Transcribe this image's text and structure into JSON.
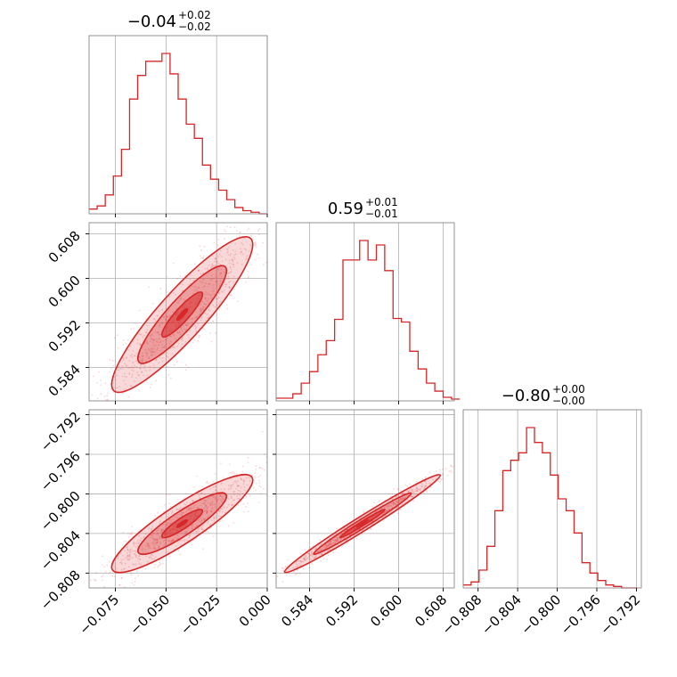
{
  "chart_data": {
    "type": "corner",
    "color": "#d62728",
    "grid": true,
    "parameters": [
      {
        "range": [
          -0.088,
          0.0
        ],
        "ticks": [
          -0.075,
          -0.05,
          -0.025,
          0.0
        ],
        "tick_labels": [
          "−0.075",
          "−0.050",
          "−0.025",
          "0.000"
        ]
      },
      {
        "range": [
          0.578,
          0.61
        ],
        "ticks": [
          0.584,
          0.592,
          0.6,
          0.608
        ],
        "tick_labels": [
          "0.584",
          "0.592",
          "0.600",
          "0.608"
        ]
      },
      {
        "range": [
          -0.8095,
          -0.7915
        ],
        "ticks": [
          -0.808,
          -0.804,
          -0.8,
          -0.796,
          -0.792
        ],
        "tick_labels": [
          "−0.808",
          "−0.804",
          "−0.800",
          "−0.796",
          "−0.792"
        ]
      }
    ],
    "titles": [
      {
        "value": "−0.04",
        "upper": "+0.02",
        "lower": "−0.02"
      },
      {
        "value": "0.59",
        "upper": "+0.01",
        "lower": "−0.01"
      },
      {
        "value": "−0.80",
        "upper": "+0.00",
        "lower": "−0.00"
      }
    ],
    "histograms": [
      {
        "edges": [
          -0.088,
          -0.084,
          -0.08,
          -0.076,
          -0.072,
          -0.068,
          -0.064,
          -0.06,
          -0.056,
          -0.052,
          -0.048,
          -0.044,
          -0.04,
          -0.036,
          -0.032,
          -0.028,
          -0.024,
          -0.02,
          -0.016,
          -0.012,
          -0.008,
          -0.004,
          0.0
        ],
        "counts": [
          3,
          5,
          12,
          24,
          41,
          73,
          88,
          97,
          97,
          102,
          89,
          73,
          57,
          48,
          31,
          22,
          15,
          9,
          4,
          2,
          1,
          0
        ]
      },
      {
        "edges": [
          0.578,
          0.5795,
          0.581,
          0.5825,
          0.584,
          0.5855,
          0.587,
          0.5885,
          0.59,
          0.5915,
          0.593,
          0.5945,
          0.596,
          0.5975,
          0.599,
          0.6005,
          0.602,
          0.6035,
          0.605,
          0.6065,
          0.608,
          0.6095,
          0.611
        ],
        "counts": [
          3,
          3,
          8,
          20,
          33,
          52,
          68,
          92,
          159,
          159,
          181,
          159,
          176,
          147,
          93,
          89,
          56,
          36,
          20,
          11,
          4,
          2
        ]
      },
      {
        "edges": [
          -0.8095,
          -0.8087,
          -0.8079,
          -0.8071,
          -0.8063,
          -0.8055,
          -0.8047,
          -0.8039,
          -0.8031,
          -0.8023,
          -0.8015,
          -0.8007,
          -0.7999,
          -0.7991,
          -0.7983,
          -0.7975,
          -0.7967,
          -0.7959,
          -0.7951,
          -0.7943,
          -0.7935,
          -0.7927,
          -0.7919
        ],
        "counts": [
          2,
          4,
          12,
          28,
          52,
          79,
          86,
          91,
          108,
          98,
          91,
          76,
          60,
          52,
          37,
          17,
          10,
          5,
          2,
          1,
          0,
          0
        ]
      }
    ],
    "contours_2d": [
      {
        "x_param": 0,
        "y_param": 1,
        "center": [
          -0.042,
          0.5935
        ],
        "sd": [
          0.0162,
          0.0065
        ],
        "corr": 0.9,
        "n_points": 900,
        "seed": 7
      },
      {
        "x_param": 0,
        "y_param": 2,
        "center": [
          -0.042,
          -0.803
        ],
        "sd": [
          0.0162,
          0.0023
        ],
        "corr": 0.89,
        "n_points": 900,
        "seed": 11
      },
      {
        "x_param": 1,
        "y_param": 2,
        "center": [
          0.5935,
          -0.803
        ],
        "sd": [
          0.0065,
          0.0023
        ],
        "corr": 0.985,
        "n_points": 900,
        "seed": 19
      }
    ]
  }
}
